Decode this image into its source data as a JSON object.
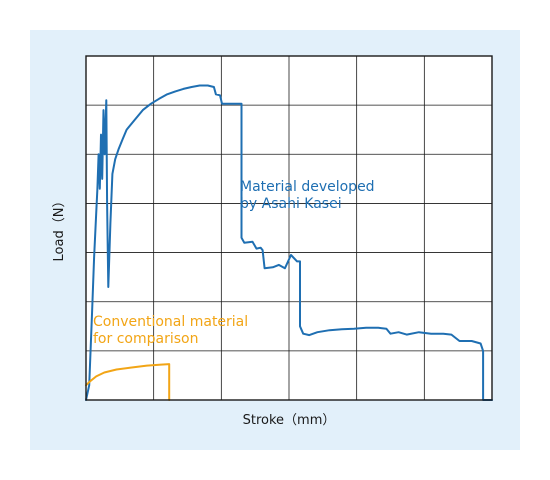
{
  "colors": {
    "panel_background": "#e2f0fa",
    "plot_background": "#ffffff",
    "grid": "#1a1a1a",
    "asahi_series": "#1f6fb2",
    "conventional_series": "#f2a516"
  },
  "chart_data": {
    "type": "line",
    "title": "",
    "xlabel": "Stroke（mm）",
    "ylabel": "Load（N）",
    "xlim": [
      0,
      10
    ],
    "ylim": [
      0,
      7
    ],
    "grid": true,
    "tick_labels": false,
    "annotations": [
      {
        "series": "asahi",
        "lines": [
          "Material developed",
          "by Asahi Kasei"
        ]
      },
      {
        "series": "conventional",
        "lines": [
          "Conventional material",
          "for comparison"
        ]
      }
    ],
    "series": [
      {
        "id": "asahi",
        "color": "#1f6fb2",
        "points": [
          [
            0.0,
            0.0
          ],
          [
            0.08,
            0.3
          ],
          [
            0.15,
            1.8
          ],
          [
            0.2,
            2.9
          ],
          [
            0.25,
            3.8
          ],
          [
            0.28,
            4.3
          ],
          [
            0.31,
            5.0
          ],
          [
            0.34,
            4.3
          ],
          [
            0.37,
            5.4
          ],
          [
            0.4,
            4.5
          ],
          [
            0.43,
            5.9
          ],
          [
            0.46,
            5.0
          ],
          [
            0.5,
            6.1
          ],
          [
            0.52,
            4.0
          ],
          [
            0.55,
            2.3
          ],
          [
            0.6,
            3.6
          ],
          [
            0.65,
            4.6
          ],
          [
            0.72,
            4.9
          ],
          [
            0.8,
            5.1
          ],
          [
            0.9,
            5.3
          ],
          [
            1.0,
            5.5
          ],
          [
            1.2,
            5.7
          ],
          [
            1.4,
            5.9
          ],
          [
            1.6,
            6.03
          ],
          [
            1.8,
            6.13
          ],
          [
            2.0,
            6.22
          ],
          [
            2.2,
            6.28
          ],
          [
            2.4,
            6.33
          ],
          [
            2.6,
            6.37
          ],
          [
            2.8,
            6.4
          ],
          [
            3.0,
            6.4
          ],
          [
            3.15,
            6.37
          ],
          [
            3.2,
            6.22
          ],
          [
            3.3,
            6.2
          ],
          [
            3.35,
            6.03
          ],
          [
            3.83,
            6.03
          ],
          [
            3.83,
            3.3
          ],
          [
            3.9,
            3.2
          ],
          [
            4.1,
            3.22
          ],
          [
            4.2,
            3.08
          ],
          [
            4.3,
            3.1
          ],
          [
            4.35,
            3.05
          ],
          [
            4.4,
            2.68
          ],
          [
            4.6,
            2.7
          ],
          [
            4.75,
            2.75
          ],
          [
            4.9,
            2.68
          ],
          [
            5.05,
            2.95
          ],
          [
            5.2,
            2.82
          ],
          [
            5.27,
            2.82
          ],
          [
            5.27,
            1.5
          ],
          [
            5.35,
            1.35
          ],
          [
            5.5,
            1.32
          ],
          [
            5.7,
            1.38
          ],
          [
            6.0,
            1.42
          ],
          [
            6.3,
            1.44
          ],
          [
            6.6,
            1.45
          ],
          [
            6.9,
            1.47
          ],
          [
            7.2,
            1.47
          ],
          [
            7.4,
            1.45
          ],
          [
            7.5,
            1.35
          ],
          [
            7.7,
            1.38
          ],
          [
            7.9,
            1.33
          ],
          [
            8.2,
            1.38
          ],
          [
            8.5,
            1.35
          ],
          [
            8.8,
            1.35
          ],
          [
            9.0,
            1.33
          ],
          [
            9.2,
            1.2
          ],
          [
            9.5,
            1.2
          ],
          [
            9.72,
            1.15
          ],
          [
            9.78,
            1.0
          ],
          [
            9.78,
            0.0
          ],
          [
            9.9,
            0.0
          ],
          [
            10.0,
            0.0
          ]
        ]
      },
      {
        "id": "conventional",
        "color": "#f2a516",
        "points": [
          [
            0.0,
            0.3
          ],
          [
            0.1,
            0.38
          ],
          [
            0.25,
            0.48
          ],
          [
            0.45,
            0.56
          ],
          [
            0.75,
            0.62
          ],
          [
            1.1,
            0.66
          ],
          [
            1.5,
            0.7
          ],
          [
            1.85,
            0.72
          ],
          [
            2.05,
            0.73
          ],
          [
            2.05,
            0.0
          ]
        ]
      }
    ]
  }
}
